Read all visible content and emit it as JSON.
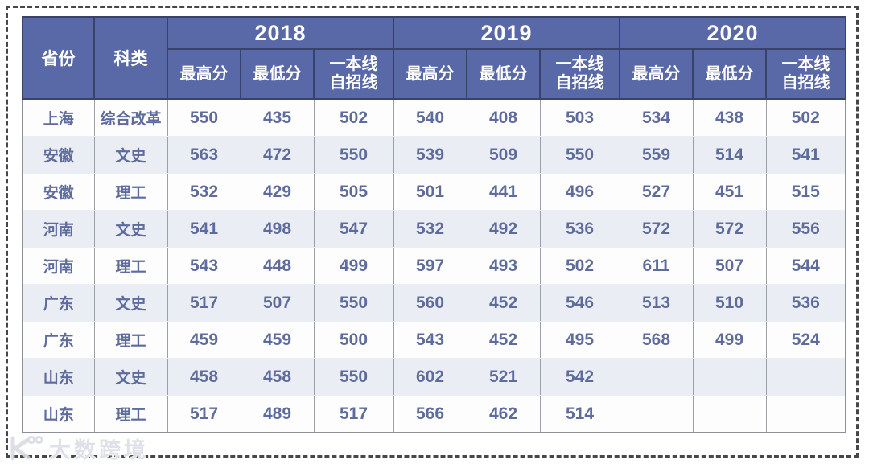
{
  "chart_data": {
    "type": "table",
    "row_header_columns": [
      "省份",
      "科类"
    ],
    "column_groups": [
      "2018",
      "2019",
      "2020"
    ],
    "sub_columns": [
      "最高分",
      "最低分",
      "一本线\n自招线"
    ],
    "rows": [
      {
        "province": "上海",
        "category": "综合改革",
        "scores": [
          "550",
          "435",
          "502",
          "540",
          "408",
          "503",
          "534",
          "438",
          "502"
        ]
      },
      {
        "province": "安徽",
        "category": "文史",
        "scores": [
          "563",
          "472",
          "550",
          "539",
          "509",
          "550",
          "559",
          "514",
          "541"
        ]
      },
      {
        "province": "安徽",
        "category": "理工",
        "scores": [
          "532",
          "429",
          "505",
          "501",
          "441",
          "496",
          "527",
          "451",
          "515"
        ]
      },
      {
        "province": "河南",
        "category": "文史",
        "scores": [
          "541",
          "498",
          "547",
          "532",
          "492",
          "536",
          "572",
          "572",
          "556"
        ]
      },
      {
        "province": "河南",
        "category": "理工",
        "scores": [
          "543",
          "448",
          "499",
          "597",
          "493",
          "502",
          "611",
          "507",
          "544"
        ]
      },
      {
        "province": "广东",
        "category": "文史",
        "scores": [
          "517",
          "507",
          "550",
          "560",
          "452",
          "546",
          "513",
          "510",
          "536"
        ]
      },
      {
        "province": "广东",
        "category": "理工",
        "scores": [
          "459",
          "459",
          "500",
          "543",
          "452",
          "495",
          "568",
          "499",
          "524"
        ]
      },
      {
        "province": "山东",
        "category": "文史",
        "scores": [
          "458",
          "458",
          "550",
          "602",
          "521",
          "542",
          "",
          "",
          ""
        ]
      },
      {
        "province": "山东",
        "category": "理工",
        "scores": [
          "517",
          "489",
          "517",
          "566",
          "462",
          "514",
          "",
          "",
          ""
        ]
      }
    ]
  },
  "watermark": {
    "text": "大数跨境",
    "logo": "k-mark-with-two-circles"
  },
  "colors": {
    "header_bg": "#5969a7",
    "header_text": "#ffffff",
    "header_line": "#38426a",
    "data_text": "#5e6b9d",
    "row_bg": "#fdfdfe",
    "alt_row_bg": "#ebedf4",
    "grid_line": "#9aa0ab",
    "outer_dash": "#474747"
  }
}
